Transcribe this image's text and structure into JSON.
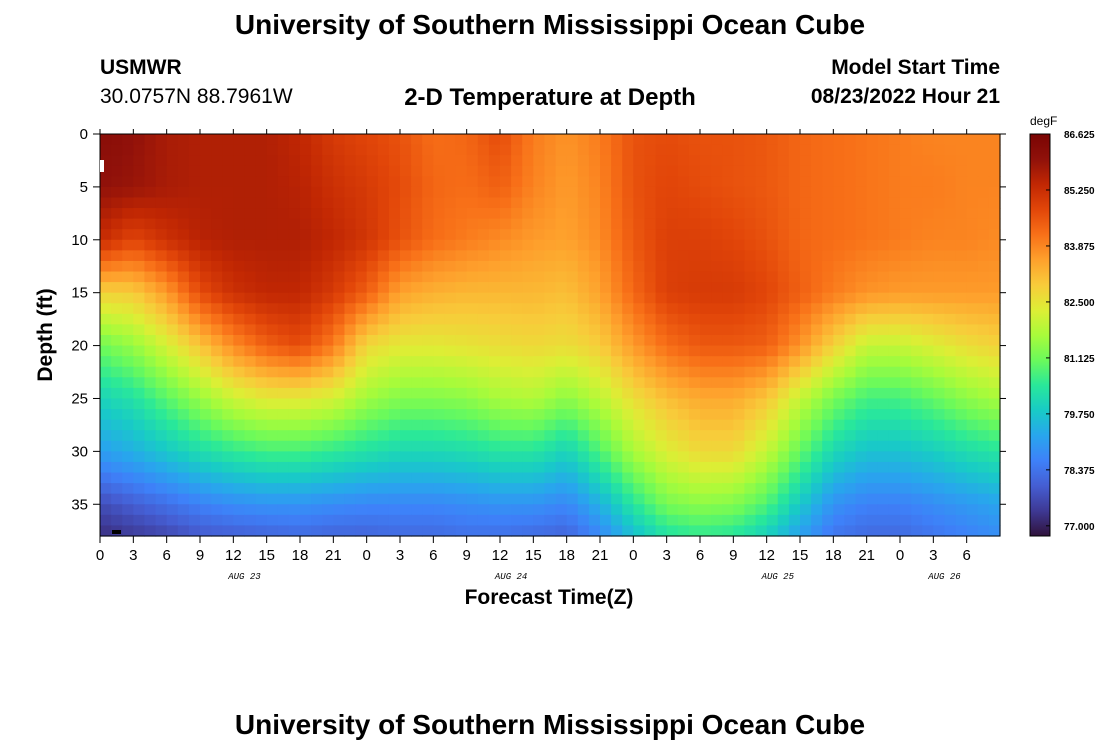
{
  "header": {
    "title": "University of Southern Mississippi Ocean Cube",
    "station": "USMWR",
    "coords": "30.0757N  88.7961W",
    "plot_title": "2-D Temperature at Depth",
    "model_start_label": "Model Start Time",
    "model_start_value": "08/23/2022 Hour 21"
  },
  "footer": {
    "title": "University of Southern Mississippi Ocean Cube"
  },
  "colors": {
    "scale": [
      "#30123b",
      "#3e3994",
      "#455ed3",
      "#3e81f9",
      "#28a6ed",
      "#18cbc6",
      "#29e89a",
      "#6bfa5b",
      "#a9fb3a",
      "#ddee35",
      "#f8cb3a",
      "#fea02c",
      "#f87018",
      "#e24609",
      "#c12703",
      "#90110a",
      "#7a0403"
    ]
  },
  "chart_data": {
    "type": "heatmap",
    "title": "2-D Temperature at Depth",
    "xlabel": "Forecast Time(Z)",
    "ylabel": "Depth (ft)",
    "colorbar_unit": "degF",
    "xlim": [
      0,
      81
    ],
    "ylim": [
      38,
      0
    ],
    "clim": [
      76.75,
      86.625
    ],
    "x_ticks": [
      {
        "hour": 0,
        "label": "0"
      },
      {
        "hour": 3,
        "label": "3"
      },
      {
        "hour": 6,
        "label": "6"
      },
      {
        "hour": 9,
        "label": "9"
      },
      {
        "hour": 12,
        "label": "12"
      },
      {
        "hour": 15,
        "label": "15"
      },
      {
        "hour": 18,
        "label": "18"
      },
      {
        "hour": 21,
        "label": "21"
      },
      {
        "hour": 24,
        "label": "0"
      },
      {
        "hour": 27,
        "label": "3"
      },
      {
        "hour": 30,
        "label": "6"
      },
      {
        "hour": 33,
        "label": "9"
      },
      {
        "hour": 36,
        "label": "12"
      },
      {
        "hour": 39,
        "label": "15"
      },
      {
        "hour": 42,
        "label": "18"
      },
      {
        "hour": 45,
        "label": "21"
      },
      {
        "hour": 48,
        "label": "0"
      },
      {
        "hour": 51,
        "label": "3"
      },
      {
        "hour": 54,
        "label": "6"
      },
      {
        "hour": 57,
        "label": "9"
      },
      {
        "hour": 60,
        "label": "12"
      },
      {
        "hour": 63,
        "label": "15"
      },
      {
        "hour": 66,
        "label": "18"
      },
      {
        "hour": 69,
        "label": "21"
      },
      {
        "hour": 72,
        "label": "0"
      },
      {
        "hour": 75,
        "label": "3"
      },
      {
        "hour": 78,
        "label": "6"
      }
    ],
    "date_labels": [
      {
        "hour": 13,
        "label": "AUG 23"
      },
      {
        "hour": 37,
        "label": "AUG 24"
      },
      {
        "hour": 61,
        "label": "AUG 25"
      },
      {
        "hour": 76,
        "label": "AUG 26"
      }
    ],
    "y_ticks": [
      0,
      5,
      10,
      15,
      20,
      25,
      30,
      35
    ],
    "colorbar_ticks": [
      "86.625",
      "85.250",
      "83.875",
      "82.500",
      "81.125",
      "79.750",
      "78.375",
      "77.000"
    ],
    "colorbar_tick_values": [
      86.625,
      85.25,
      83.875,
      82.5,
      81.125,
      79.75,
      78.375,
      77.0
    ],
    "grid": {
      "times": [
        0,
        3,
        6,
        9,
        12,
        15,
        18,
        21,
        24,
        27,
        30,
        33,
        36,
        39,
        42,
        45,
        48,
        51,
        54,
        57,
        60,
        63,
        66,
        69,
        72,
        75,
        78,
        81
      ],
      "depths": [
        0,
        5,
        10,
        15,
        20,
        25,
        30,
        35,
        38
      ],
      "values": [
        [
          86.2,
          86.0,
          85.7,
          85.6,
          85.6,
          85.6,
          85.4,
          85.0,
          84.8,
          84.6,
          84.2,
          84.3,
          84.7,
          84.0,
          83.7,
          84.0,
          84.6,
          84.7,
          84.6,
          84.6,
          84.5,
          84.3,
          84.2,
          84.1,
          84.0,
          83.9,
          83.9,
          83.9
        ],
        [
          86.0,
          85.9,
          85.7,
          85.6,
          85.6,
          85.6,
          85.5,
          85.2,
          85.0,
          84.7,
          84.3,
          84.2,
          84.4,
          83.9,
          83.6,
          83.9,
          84.6,
          84.8,
          84.7,
          84.6,
          84.5,
          84.3,
          84.2,
          84.1,
          84.0,
          84.0,
          83.9,
          83.9
        ],
        [
          85.3,
          84.8,
          85.2,
          85.5,
          85.6,
          85.6,
          85.6,
          85.4,
          85.1,
          84.6,
          84.2,
          84.0,
          83.8,
          83.6,
          83.5,
          83.8,
          84.5,
          84.9,
          84.9,
          84.8,
          84.6,
          84.3,
          84.2,
          84.1,
          84.0,
          83.9,
          83.9,
          83.8
        ],
        [
          82.8,
          82.9,
          83.6,
          84.7,
          85.2,
          85.4,
          85.4,
          85.0,
          84.4,
          83.5,
          83.3,
          83.2,
          83.2,
          83.2,
          83.1,
          83.5,
          84.3,
          84.9,
          85.0,
          85.0,
          84.8,
          84.4,
          84.0,
          83.7,
          83.6,
          83.6,
          83.6,
          83.6
        ],
        [
          81.1,
          81.5,
          82.2,
          83.0,
          83.8,
          84.4,
          84.7,
          84.0,
          82.7,
          82.4,
          82.4,
          82.5,
          82.6,
          82.7,
          82.6,
          82.9,
          83.6,
          84.2,
          84.5,
          84.5,
          84.4,
          83.7,
          82.8,
          82.0,
          82.0,
          82.3,
          82.6,
          82.8
        ],
        [
          80.0,
          80.3,
          80.9,
          81.5,
          82.1,
          82.4,
          82.4,
          82.2,
          81.6,
          81.3,
          81.3,
          81.4,
          81.7,
          81.8,
          81.4,
          81.9,
          82.6,
          83.1,
          83.4,
          83.4,
          83.0,
          82.0,
          81.2,
          80.7,
          80.7,
          81.0,
          81.4,
          81.7
        ],
        [
          79.1,
          79.4,
          79.8,
          80.2,
          80.5,
          80.7,
          80.7,
          80.5,
          80.3,
          80.1,
          80.1,
          80.2,
          80.4,
          80.4,
          80.0,
          80.8,
          81.7,
          82.3,
          82.7,
          82.7,
          82.0,
          81.0,
          80.1,
          79.7,
          79.7,
          79.9,
          80.2,
          80.4
        ],
        [
          77.7,
          78.0,
          78.3,
          78.6,
          78.8,
          78.9,
          78.9,
          78.8,
          78.7,
          78.7,
          78.7,
          78.8,
          78.9,
          78.9,
          78.7,
          79.4,
          80.4,
          81.2,
          81.4,
          81.3,
          80.8,
          79.8,
          78.9,
          78.6,
          78.6,
          78.8,
          79.0,
          79.2
        ],
        [
          77.2,
          77.4,
          77.6,
          77.9,
          78.0,
          78.1,
          78.2,
          78.1,
          78.1,
          78.2,
          78.2,
          78.3,
          78.3,
          78.2,
          78.1,
          78.7,
          79.6,
          80.3,
          80.5,
          80.4,
          79.9,
          79.1,
          78.4,
          78.2,
          78.2,
          78.4,
          78.6,
          78.8
        ]
      ]
    }
  }
}
